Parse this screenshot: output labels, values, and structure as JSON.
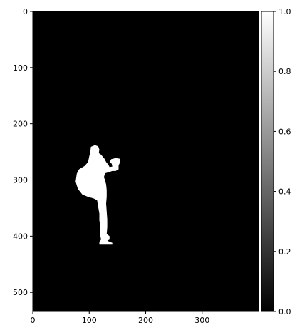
{
  "chart_data": {
    "type": "heatmap",
    "title": "",
    "xlabel": "",
    "ylabel": "",
    "image_width": 400,
    "image_height": 534,
    "x_ticks": [
      0,
      100,
      200,
      300
    ],
    "y_ticks": [
      0,
      100,
      200,
      300,
      400,
      500
    ],
    "colormap": "gray",
    "colorbar": {
      "range": [
        0,
        1
      ],
      "ticks": [
        0.0,
        0.2,
        0.4,
        0.6,
        0.8,
        1.0
      ],
      "tick_labels": [
        "0.0",
        "0.2",
        "0.4",
        "0.6",
        "0.8",
        "1.0"
      ]
    },
    "background_value": 0,
    "mask_value": 1,
    "mask_shape": {
      "description": "white binary silhouette of a standing person with a backpack, on a black background",
      "outline": [
        [
          103,
          241
        ],
        [
          110,
          238
        ],
        [
          116,
          240
        ],
        [
          118,
          246
        ],
        [
          117,
          252
        ],
        [
          121,
          255
        ],
        [
          127,
          262
        ],
        [
          130,
          268
        ],
        [
          134,
          273
        ],
        [
          136,
          277
        ],
        [
          141,
          276
        ],
        [
          140,
          271
        ],
        [
          136,
          268
        ],
        [
          139,
          263
        ],
        [
          147,
          261
        ],
        [
          154,
          262
        ],
        [
          155,
          268
        ],
        [
          152,
          274
        ],
        [
          152,
          281
        ],
        [
          147,
          284
        ],
        [
          141,
          284
        ],
        [
          135,
          286
        ],
        [
          128,
          288
        ],
        [
          126,
          295
        ],
        [
          128,
          300
        ],
        [
          130,
          308
        ],
        [
          131,
          318
        ],
        [
          131,
          330
        ],
        [
          130,
          342
        ],
        [
          131,
          356
        ],
        [
          132,
          370
        ],
        [
          132,
          384
        ],
        [
          131,
          396
        ],
        [
          136,
          400
        ],
        [
          136,
          406
        ],
        [
          132,
          408
        ],
        [
          141,
          412
        ],
        [
          141,
          415
        ],
        [
          118,
          415
        ],
        [
          118,
          410
        ],
        [
          121,
          406
        ],
        [
          119,
          396
        ],
        [
          120,
          384
        ],
        [
          118,
          372
        ],
        [
          118,
          360
        ],
        [
          116,
          348
        ],
        [
          114,
          336
        ],
        [
          108,
          333
        ],
        [
          98,
          330
        ],
        [
          88,
          326
        ],
        [
          80,
          316
        ],
        [
          76,
          303
        ],
        [
          78,
          289
        ],
        [
          82,
          281
        ],
        [
          92,
          275
        ],
        [
          98,
          268
        ],
        [
          100,
          258
        ],
        [
          102,
          250
        ]
      ]
    }
  }
}
